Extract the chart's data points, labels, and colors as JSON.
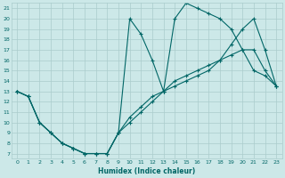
{
  "xlabel": "Humidex (Indice chaleur)",
  "bg_color": "#cce8e8",
  "grid_color": "#aacccc",
  "line_color": "#006666",
  "xlim": [
    -0.5,
    23.5
  ],
  "ylim": [
    6.5,
    21.5
  ],
  "xticks": [
    0,
    1,
    2,
    3,
    4,
    5,
    6,
    7,
    8,
    9,
    10,
    11,
    12,
    13,
    14,
    15,
    16,
    17,
    18,
    19,
    20,
    21,
    22,
    23
  ],
  "yticks": [
    7,
    8,
    9,
    10,
    11,
    12,
    13,
    14,
    15,
    16,
    17,
    18,
    19,
    20,
    21
  ],
  "series": [
    {
      "x": [
        0,
        1,
        2,
        3,
        4,
        5,
        6,
        7,
        8,
        9,
        10,
        11,
        12,
        13,
        14,
        15,
        16,
        17,
        18,
        19,
        20,
        21,
        22,
        23
      ],
      "y": [
        13,
        12.5,
        10,
        9,
        8,
        7.5,
        7,
        7,
        7,
        9,
        20,
        18.5,
        16,
        13,
        20,
        21.5,
        21,
        20.5,
        20,
        19,
        17,
        15,
        14.5,
        13.5
      ]
    },
    {
      "x": [
        0,
        1,
        2,
        3,
        4,
        5,
        6,
        7,
        8,
        9,
        10,
        11,
        12,
        13,
        14,
        15,
        16,
        17,
        18,
        19,
        20,
        21,
        22,
        23
      ],
      "y": [
        13,
        12.5,
        10,
        9,
        8,
        7.5,
        7,
        7,
        7,
        9,
        10,
        11,
        12,
        13,
        13.5,
        14,
        14.5,
        15,
        16,
        16.5,
        17,
        17,
        15,
        13.5
      ]
    },
    {
      "x": [
        0,
        1,
        2,
        3,
        4,
        5,
        6,
        7,
        8,
        9,
        10,
        11,
        12,
        13,
        14,
        15,
        16,
        17,
        18,
        19,
        20,
        21,
        22,
        23
      ],
      "y": [
        13,
        12.5,
        10,
        9,
        8,
        7.5,
        7,
        7,
        7,
        9,
        10.5,
        11.5,
        12.5,
        13,
        14,
        14.5,
        15,
        15.5,
        16,
        17.5,
        19,
        20,
        17,
        13.5
      ]
    }
  ]
}
